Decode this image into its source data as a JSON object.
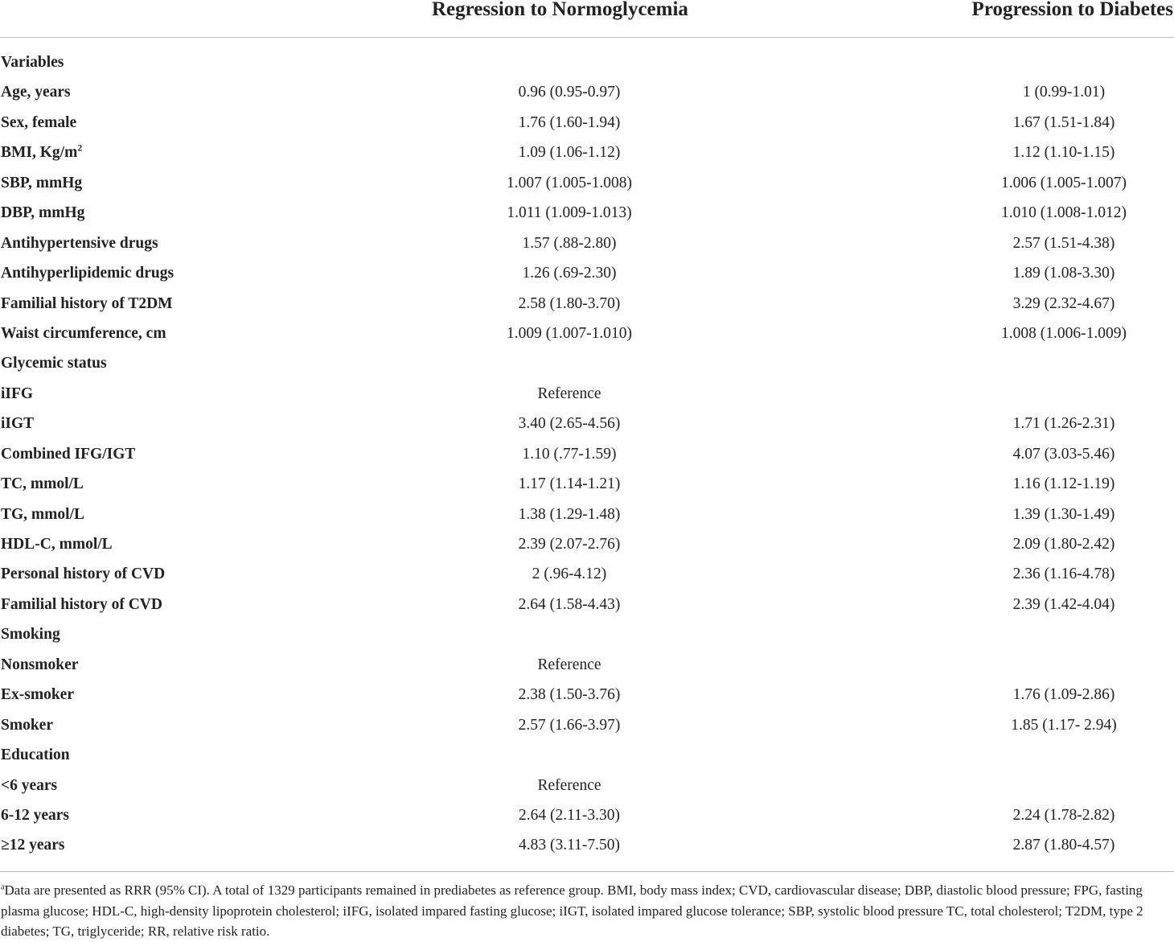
{
  "header": {
    "col1": "Regression to Normoglycemia",
    "col2": "Progression to Diabetes"
  },
  "rows": [
    {
      "label": "Variables",
      "c1": "",
      "c2": ""
    },
    {
      "label": "Age, years",
      "c1": "0.96 (0.95-0.97)",
      "c2": "1 (0.99-1.01)"
    },
    {
      "label": "Sex, female",
      "c1": "1.76 (1.60-1.94)",
      "c2": "1.67 (1.51-1.84)"
    },
    {
      "label": "BMI, Kg/m",
      "label_sup": "2",
      "c1": "1.09 (1.06-1.12)",
      "c2": "1.12 (1.10-1.15)"
    },
    {
      "label": "SBP, mmHg",
      "c1": "1.007 (1.005-1.008)",
      "c2": "1.006 (1.005-1.007)"
    },
    {
      "label": "DBP, mmHg",
      "c1": "1.011 (1.009-1.013)",
      "c2": "1.010 (1.008-1.012)"
    },
    {
      "label": "Antihypertensive drugs",
      "c1": "1.57 (.88-2.80)",
      "c2": "2.57 (1.51-4.38)"
    },
    {
      "label": "Antihyperlipidemic drugs",
      "c1": "1.26 (.69-2.30)",
      "c2": "1.89 (1.08-3.30)"
    },
    {
      "label": "Familial history of T2DM",
      "c1": "2.58 (1.80-3.70)",
      "c2": "3.29 (2.32-4.67)"
    },
    {
      "label": "Waist circumference, cm",
      "c1": "1.009 (1.007-1.010)",
      "c2": "1.008 (1.006-1.009)"
    },
    {
      "label": "Glycemic status",
      "c1": "",
      "c2": ""
    },
    {
      "label": "iIFG",
      "c1": "Reference",
      "c2": ""
    },
    {
      "label": "iIGT",
      "c1": "3.40 (2.65-4.56)",
      "c2": "1.71 (1.26-2.31)"
    },
    {
      "label": "Combined IFG/IGT",
      "c1": "1.10 (.77-1.59)",
      "c2": "4.07 (3.03-5.46)"
    },
    {
      "label": "TC, mmol/L",
      "c1": "1.17 (1.14-1.21)",
      "c2": "1.16 (1.12-1.19)"
    },
    {
      "label": "TG, mmol/L",
      "c1": "1.38 (1.29-1.48)",
      "c2": "1.39 (1.30-1.49)"
    },
    {
      "label": "HDL-C, mmol/L",
      "c1": "2.39 (2.07-2.76)",
      "c2": "2.09 (1.80-2.42)"
    },
    {
      "label": "Personal history of CVD",
      "c1": "2 (.96-4.12)",
      "c2": "2.36 (1.16-4.78)"
    },
    {
      "label": "Familial history of CVD",
      "c1": "2.64 (1.58-4.43)",
      "c2": "2.39 (1.42-4.04)"
    },
    {
      "label": "Smoking",
      "c1": "",
      "c2": ""
    },
    {
      "label": "Nonsmoker",
      "c1": "Reference",
      "c2": ""
    },
    {
      "label": "Ex-smoker",
      "c1": "2.38 (1.50-3.76)",
      "c2": "1.76 (1.09-2.86)"
    },
    {
      "label": "Smoker",
      "c1": "2.57 (1.66-3.97)",
      "c2": "1.85 (1.17- 2.94)"
    },
    {
      "label": "Education",
      "c1": "",
      "c2": ""
    },
    {
      "label": "<6 years",
      "c1": "Reference",
      "c2": ""
    },
    {
      "label": "6-12 years",
      "c1": "2.64 (2.11-3.30)",
      "c2": "2.24 (1.78-2.82)"
    },
    {
      "label": "≥12 years",
      "c1": "4.83 (3.11-7.50)",
      "c2": "2.87 (1.80-4.57)"
    }
  ],
  "footnote": {
    "marker": "a",
    "text": "Data are presented as RRR (95% CI). A total of 1329 participants remained in prediabetes as reference group. BMI, body mass index; CVD, cardiovascular disease; DBP, diastolic blood pressure; FPG, fasting plasma glucose; HDL-C, high-density lipoprotein cholesterol; iIFG, isolated impared fasting glucose; iIGT, isolated impared glucose tolerance; SBP, systolic blood pressure TC, total cholesterol; T2DM, type 2 diabetes; TG, triglyceride; RR, relative risk ratio."
  }
}
